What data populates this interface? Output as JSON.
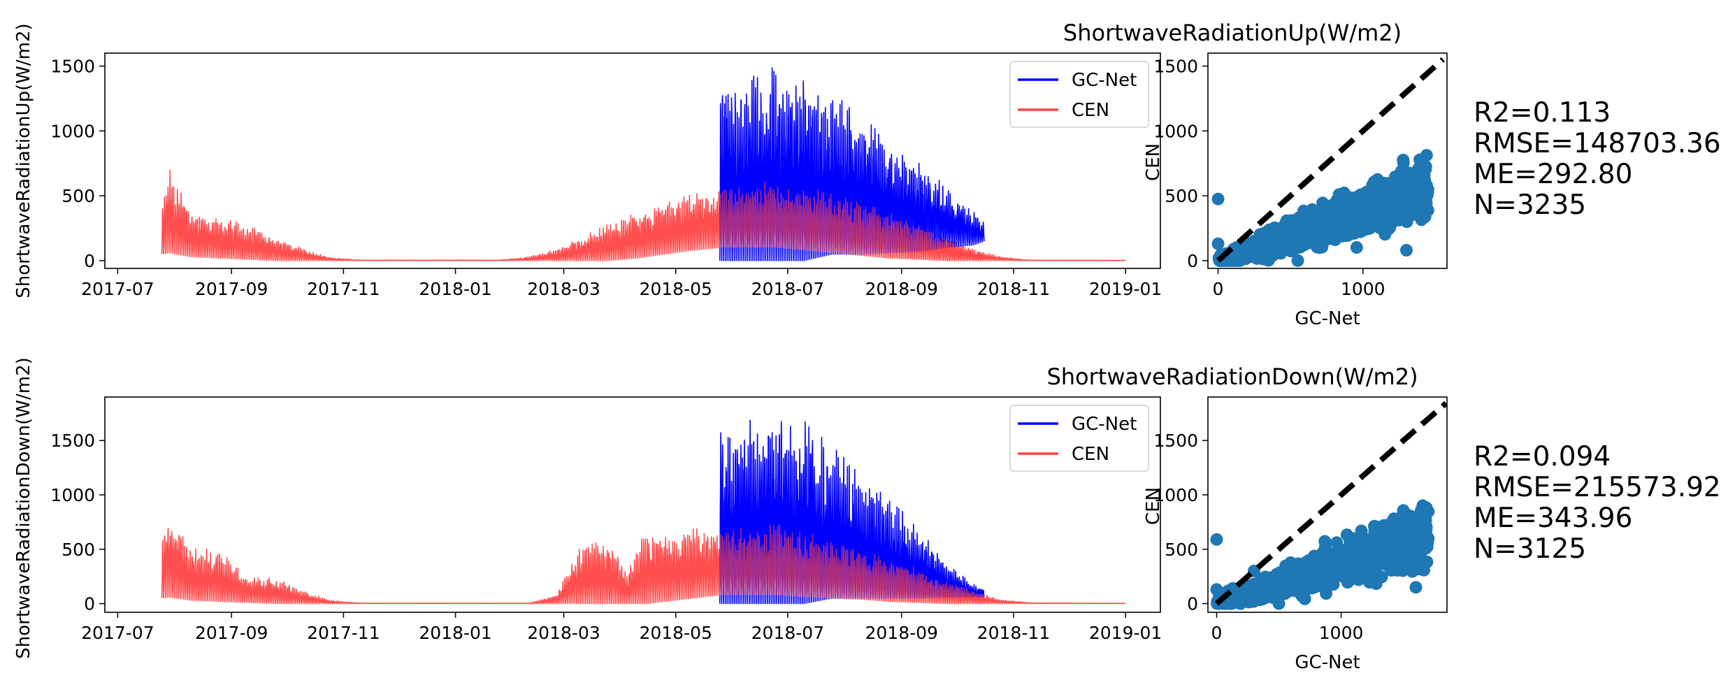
{
  "colors": {
    "gcnet": "#0000ff",
    "cen": "#ff4444",
    "scatter": "#1f77b4",
    "identity_line": "#000000"
  },
  "chart_data": [
    {
      "type": "line",
      "ylabel": "ShortwaveRadiationUp(W/m2)",
      "xlabel": "",
      "x_ticks": [
        "2017-07",
        "2017-09",
        "2017-11",
        "2018-01",
        "2018-03",
        "2018-05",
        "2018-07",
        "2018-09",
        "2018-11",
        "2019-01"
      ],
      "x_range": [
        "2017-06-24",
        "2019-01-20"
      ],
      "y_ticks": [
        0,
        500,
        1000,
        1500
      ],
      "ylim": [
        -60,
        1600
      ],
      "grid": false,
      "legend": "top-right",
      "series": [
        {
          "name": "GC-Net",
          "color": "#0000ff",
          "start": "2018-05-25",
          "end": "2018-10-16",
          "envelope": [
            {
              "date": "2018-05-25",
              "peak": 1450,
              "low": 0
            },
            {
              "date": "2018-06-10",
              "peak": 1480,
              "low": 0
            },
            {
              "date": "2018-06-25",
              "peak": 1500,
              "low": 0
            },
            {
              "date": "2018-07-10",
              "peak": 1420,
              "low": 0
            },
            {
              "date": "2018-07-25",
              "peak": 1280,
              "low": 50
            },
            {
              "date": "2018-08-10",
              "peak": 1150,
              "low": 50
            },
            {
              "date": "2018-08-25",
              "peak": 950,
              "low": 60
            },
            {
              "date": "2018-09-10",
              "peak": 780,
              "low": 70
            },
            {
              "date": "2018-09-25",
              "peak": 580,
              "low": 100
            },
            {
              "date": "2018-10-10",
              "peak": 380,
              "low": 120
            },
            {
              "date": "2018-10-16",
              "peak": 290,
              "low": 150
            }
          ]
        },
        {
          "name": "CEN",
          "color": "#ff4444",
          "start": "2017-07-25",
          "end": "2019-01-01",
          "envelope": [
            {
              "date": "2017-07-25",
              "peak": 420,
              "low": 50
            },
            {
              "date": "2017-07-29",
              "peak": 720,
              "low": 60
            },
            {
              "date": "2017-08-10",
              "peak": 390,
              "low": 30
            },
            {
              "date": "2017-08-25",
              "peak": 330,
              "low": 20
            },
            {
              "date": "2017-09-10",
              "peak": 280,
              "low": 10
            },
            {
              "date": "2017-09-25",
              "peak": 180,
              "low": 0
            },
            {
              "date": "2017-10-10",
              "peak": 90,
              "low": 0
            },
            {
              "date": "2017-10-25",
              "peak": 25,
              "low": 0
            },
            {
              "date": "2017-11-10",
              "peak": 5,
              "low": 0
            },
            {
              "date": "2018-01-25",
              "peak": 5,
              "low": 0
            },
            {
              "date": "2018-02-10",
              "peak": 30,
              "low": 0
            },
            {
              "date": "2018-02-25",
              "peak": 90,
              "low": 0
            },
            {
              "date": "2018-03-10",
              "peak": 180,
              "low": 0
            },
            {
              "date": "2018-03-25",
              "peak": 280,
              "low": 0
            },
            {
              "date": "2018-04-10",
              "peak": 380,
              "low": 20
            },
            {
              "date": "2018-04-25",
              "peak": 450,
              "low": 50
            },
            {
              "date": "2018-05-10",
              "peak": 520,
              "low": 80
            },
            {
              "date": "2018-05-25",
              "peak": 540,
              "low": 100
            },
            {
              "date": "2018-06-10",
              "peak": 590,
              "low": 100
            },
            {
              "date": "2018-06-25",
              "peak": 630,
              "low": 100
            },
            {
              "date": "2018-07-10",
              "peak": 570,
              "low": 80
            },
            {
              "date": "2018-07-25",
              "peak": 530,
              "low": 60
            },
            {
              "date": "2018-08-10",
              "peak": 460,
              "low": 40
            },
            {
              "date": "2018-08-25",
              "peak": 380,
              "low": 20
            },
            {
              "date": "2018-09-10",
              "peak": 280,
              "low": 10
            },
            {
              "date": "2018-09-25",
              "peak": 180,
              "low": 0
            },
            {
              "date": "2018-10-10",
              "peak": 90,
              "low": 0
            },
            {
              "date": "2018-10-25",
              "peak": 30,
              "low": 0
            },
            {
              "date": "2018-11-10",
              "peak": 5,
              "low": 0
            },
            {
              "date": "2019-01-01",
              "peak": 3,
              "low": 0
            }
          ]
        }
      ]
    },
    {
      "type": "scatter",
      "title": "ShortwaveRadiationUp(W/m2)",
      "xlabel": "GC-Net",
      "ylabel": "CEN",
      "xlim": [
        -70,
        1580
      ],
      "ylim": [
        -60,
        1600
      ],
      "x_ticks": [
        0,
        1000
      ],
      "y_ticks": [
        0,
        500,
        1000,
        1500
      ],
      "identity_line": true,
      "stats": [
        "R2=0.113",
        "RMSE=148703.36",
        "ME=292.80",
        "N=3235"
      ],
      "cluster": {
        "slope": 0.38,
        "x_max": 1450,
        "spread": 90
      },
      "outliers": [
        [
          0,
          475
        ],
        [
          0,
          130
        ],
        [
          550,
          0
        ],
        [
          700,
          100
        ],
        [
          1300,
          80
        ]
      ]
    },
    {
      "type": "line",
      "ylabel": "ShortwaveRadiationDown(W/m2)",
      "xlabel": "",
      "x_ticks": [
        "2017-07",
        "2017-09",
        "2017-11",
        "2018-01",
        "2018-03",
        "2018-05",
        "2018-07",
        "2018-09",
        "2018-11",
        "2019-01"
      ],
      "x_range": [
        "2017-06-24",
        "2019-01-20"
      ],
      "y_ticks": [
        0,
        500,
        1000,
        1500
      ],
      "ylim": [
        -80,
        1900
      ],
      "grid": false,
      "legend": "top-right",
      "series": [
        {
          "name": "GC-Net",
          "color": "#0000ff",
          "start": "2018-05-25",
          "end": "2018-10-16",
          "envelope": [
            {
              "date": "2018-05-25",
              "peak": 1650,
              "low": 0
            },
            {
              "date": "2018-06-10",
              "peak": 1720,
              "low": 0
            },
            {
              "date": "2018-06-25",
              "peak": 1790,
              "low": 0
            },
            {
              "date": "2018-07-10",
              "peak": 1680,
              "low": 0
            },
            {
              "date": "2018-07-25",
              "peak": 1450,
              "low": 50
            },
            {
              "date": "2018-08-10",
              "peak": 1250,
              "low": 50
            },
            {
              "date": "2018-08-25",
              "peak": 980,
              "low": 50
            },
            {
              "date": "2018-09-10",
              "peak": 700,
              "low": 50
            },
            {
              "date": "2018-09-25",
              "peak": 380,
              "low": 60
            },
            {
              "date": "2018-10-10",
              "peak": 180,
              "low": 60
            },
            {
              "date": "2018-10-16",
              "peak": 130,
              "low": 60
            }
          ]
        },
        {
          "name": "CEN",
          "color": "#ff4444",
          "start": "2017-07-25",
          "end": "2019-01-01",
          "envelope": [
            {
              "date": "2017-07-25",
              "peak": 600,
              "low": 50
            },
            {
              "date": "2017-07-29",
              "peak": 870,
              "low": 60
            },
            {
              "date": "2017-08-10",
              "peak": 520,
              "low": 30
            },
            {
              "date": "2017-08-25",
              "peak": 500,
              "low": 20
            },
            {
              "date": "2017-09-10",
              "peak": 260,
              "low": 10
            },
            {
              "date": "2017-09-25",
              "peak": 240,
              "low": 0
            },
            {
              "date": "2017-10-10",
              "peak": 120,
              "low": 0
            },
            {
              "date": "2017-10-25",
              "peak": 30,
              "low": 0
            },
            {
              "date": "2017-11-10",
              "peak": 5,
              "low": 0
            },
            {
              "date": "2018-02-10",
              "peak": 5,
              "low": 0
            },
            {
              "date": "2018-02-25",
              "peak": 80,
              "low": 0
            },
            {
              "date": "2018-03-10",
              "peak": 550,
              "low": 0
            },
            {
              "date": "2018-03-25",
              "peak": 600,
              "low": 0
            },
            {
              "date": "2018-04-05",
              "peak": 300,
              "low": 0
            },
            {
              "date": "2018-04-15",
              "peak": 700,
              "low": 0
            },
            {
              "date": "2018-04-25",
              "peak": 650,
              "low": 20
            },
            {
              "date": "2018-05-10",
              "peak": 690,
              "low": 50
            },
            {
              "date": "2018-05-25",
              "peak": 700,
              "low": 80
            },
            {
              "date": "2018-06-10",
              "peak": 720,
              "low": 80
            },
            {
              "date": "2018-06-25",
              "peak": 740,
              "low": 80
            },
            {
              "date": "2018-07-10",
              "peak": 680,
              "low": 60
            },
            {
              "date": "2018-07-25",
              "peak": 600,
              "low": 50
            },
            {
              "date": "2018-08-10",
              "peak": 520,
              "low": 40
            },
            {
              "date": "2018-08-25",
              "peak": 430,
              "low": 20
            },
            {
              "date": "2018-09-10",
              "peak": 330,
              "low": 10
            },
            {
              "date": "2018-09-25",
              "peak": 230,
              "low": 0
            },
            {
              "date": "2018-10-10",
              "peak": 120,
              "low": 0
            },
            {
              "date": "2018-10-25",
              "peak": 40,
              "low": 0
            },
            {
              "date": "2018-11-10",
              "peak": 8,
              "low": 0
            },
            {
              "date": "2019-01-01",
              "peak": 3,
              "low": 0
            }
          ]
        }
      ]
    },
    {
      "type": "scatter",
      "title": "ShortwaveRadiationDown(W/m2)",
      "xlabel": "GC-Net",
      "ylabel": "CEN",
      "xlim": [
        -70,
        1850
      ],
      "ylim": [
        -80,
        1900
      ],
      "x_ticks": [
        0,
        1000
      ],
      "y_ticks": [
        0,
        500,
        1000,
        1500
      ],
      "identity_line": true,
      "stats": [
        "R2=0.094",
        "RMSE=215573.92",
        "ME=343.96",
        "N=3125"
      ],
      "cluster": {
        "slope": 0.38,
        "x_max": 1700,
        "spread": 110
      },
      "outliers": [
        [
          0,
          590
        ],
        [
          0,
          130
        ],
        [
          500,
          0
        ],
        [
          1600,
          150
        ],
        [
          1700,
          600
        ],
        [
          300,
          300
        ]
      ]
    }
  ]
}
